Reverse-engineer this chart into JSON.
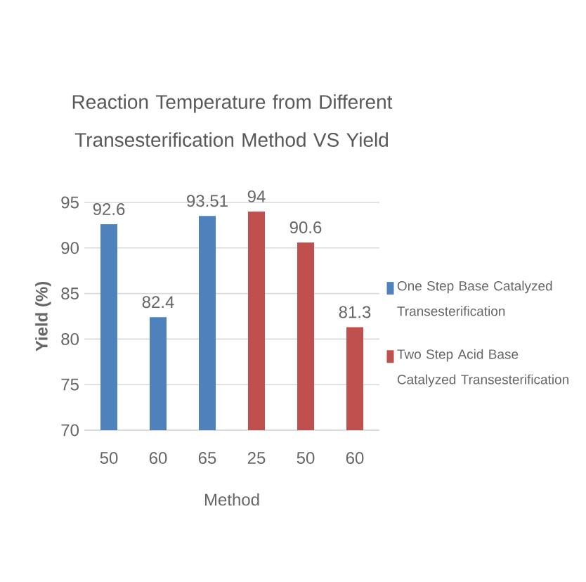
{
  "chart_data": {
    "type": "bar",
    "title": "Reaction Temperature from Different Transesterification Method VS Yield",
    "xlabel": "Method",
    "ylabel": "Yield (%)",
    "categories": [
      "50",
      "60",
      "65",
      "25",
      "50",
      "60"
    ],
    "series": [
      {
        "name": "One Step Base Catalyzed Transesterification",
        "color": "#4f81bd",
        "values": [
          92.6,
          82.4,
          93.51,
          null,
          null,
          null
        ]
      },
      {
        "name": "Two Step Acid Base Catalyzed Transesterification",
        "color": "#c0504d",
        "values": [
          null,
          null,
          null,
          94,
          90.6,
          81.3
        ]
      }
    ],
    "ylim": [
      70,
      95
    ],
    "yticks": [
      70,
      75,
      80,
      85,
      90,
      95
    ],
    "grid": "y",
    "legend": "right",
    "data_labels": true
  }
}
